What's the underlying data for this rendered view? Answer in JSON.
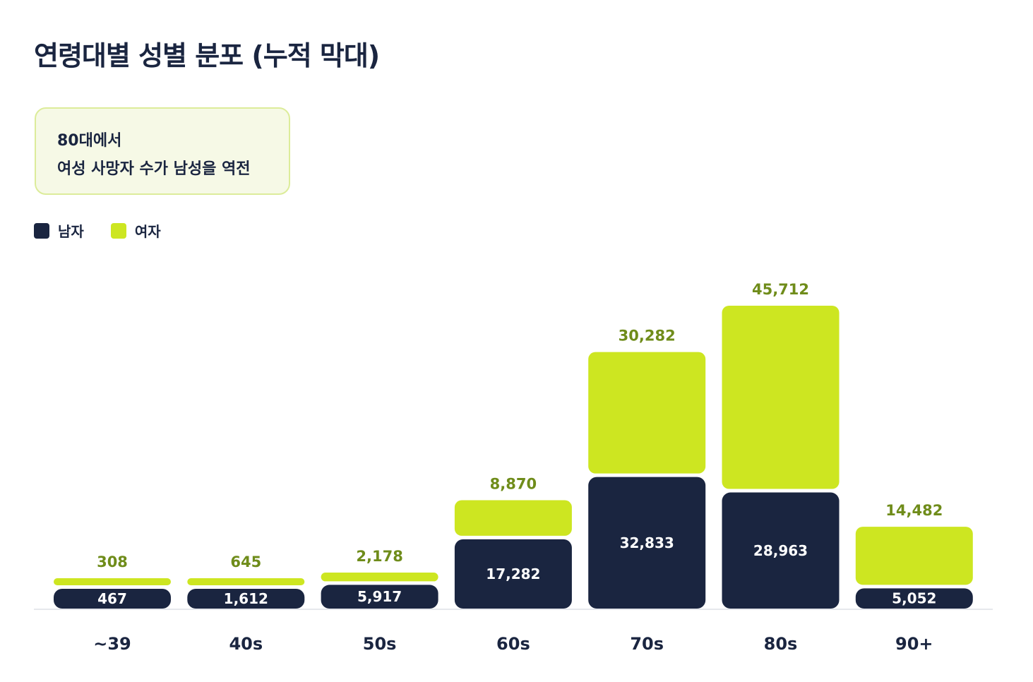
{
  "chart_data": {
    "type": "bar",
    "stacked": true,
    "title": "연령대별 성별 분포 (누적 막대)",
    "annotation": [
      "80대에서",
      "여성 사망자 수가 남성을 역전"
    ],
    "categories": [
      "~39",
      "40s",
      "50s",
      "60s",
      "70s",
      "80s",
      "90+"
    ],
    "series": [
      {
        "name": "남자",
        "color": "#1a2540",
        "values": [
          467,
          1612,
          5917,
          17282,
          32833,
          28963,
          5052
        ],
        "labels": [
          "467",
          "1,612",
          "5,917",
          "17,282",
          "32,833",
          "28,963",
          "5,052"
        ]
      },
      {
        "name": "여자",
        "color": "#cde621",
        "values": [
          308,
          645,
          2178,
          8870,
          30282,
          45712,
          14482
        ],
        "labels": [
          "308",
          "645",
          "2,178",
          "8,870",
          "30,282",
          "45,712",
          "14,482"
        ]
      }
    ],
    "female_label_color": "#6f8c1a",
    "legend_position": "top-left",
    "grid": false
  }
}
